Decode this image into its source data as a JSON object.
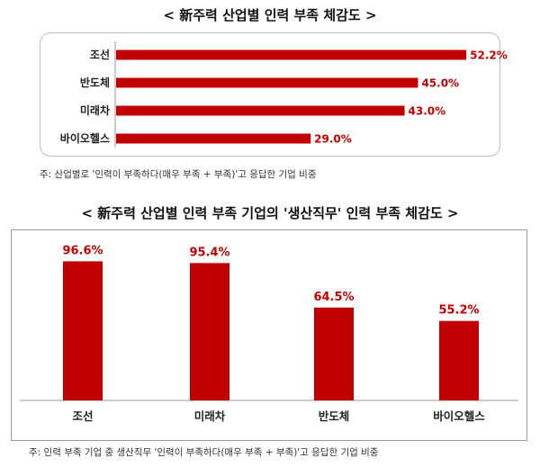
{
  "chart_data": [
    {
      "type": "bar",
      "orientation": "horizontal",
      "title": "< 新주력 산업별 인력 부족 체감도 >",
      "categories": [
        "조선",
        "반도체",
        "미래차",
        "바이오헬스"
      ],
      "values": [
        52.2,
        45.0,
        43.0,
        29.0
      ],
      "value_labels": [
        "52.2%",
        "45.0%",
        "43.0%",
        "29.0%"
      ],
      "note": "주: 산업별로 '인력이 부족하다(매우 부족 + 부족)'고 응답한 기업 비중",
      "xlim": [
        0,
        55
      ],
      "grid": false,
      "bar_color": "#c00000",
      "label_color": "#c00000"
    },
    {
      "type": "bar",
      "orientation": "vertical",
      "title": "< 新주력 산업별 인력 부족 기업의 '생산직무' 인력 부족 체감도 >",
      "categories": [
        "조선",
        "미래차",
        "반도체",
        "바이오헬스"
      ],
      "values": [
        96.6,
        95.4,
        64.5,
        55.2
      ],
      "value_labels": [
        "96.6%",
        "95.4%",
        "64.5%",
        "55.2%"
      ],
      "note": "주: 인력 부족 기업 중 생산직무 '인력이 부족하다(매우 부족 + 부족)'고 응답한 기업 비중",
      "ylim": [
        0,
        100
      ],
      "grid": false,
      "bar_color": "#c00000",
      "label_color": "#c00000"
    }
  ]
}
